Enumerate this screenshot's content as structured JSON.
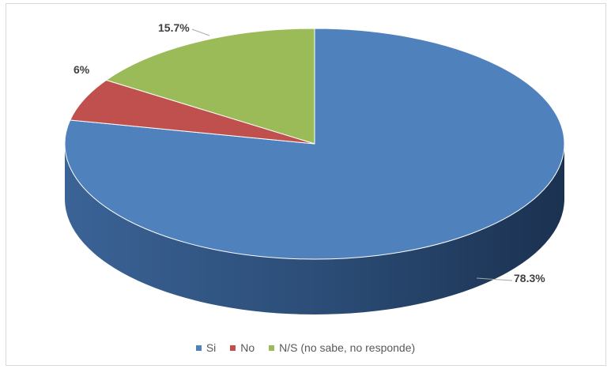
{
  "chart_data": {
    "type": "pie",
    "style": "3d",
    "categories": [
      "Si",
      "No",
      "N/S (no sabe, no responde)"
    ],
    "values": [
      78.3,
      6,
      15.7
    ],
    "data_labels": [
      "78.3%",
      "6%",
      "15.7%"
    ],
    "colors": [
      "#4f81bd",
      "#c0504d",
      "#9bbb59"
    ],
    "legend_position": "bottom",
    "title": ""
  }
}
